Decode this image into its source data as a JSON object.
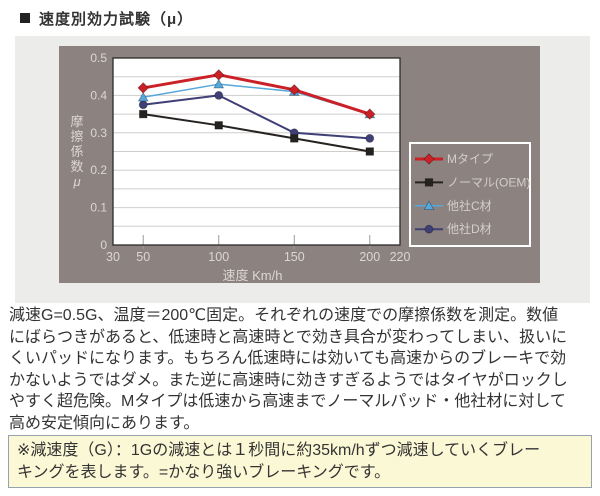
{
  "header": {
    "title": "速度別効力試験（μ）"
  },
  "paragraph": "減速G=0.5G、温度＝200℃固定。それぞれの速度での摩擦係数を測定。数値\nにばらつきがあると、低速時と高速時とで効き具合が変わってしまい、扱いに\nくいパッドになります。もちろん低速時には効いても高速からのブレーキで効\nかないようではダメ。また逆に高速時に効きすぎるようではタイヤがロックし\nやすく超危険。Mタイプは低速から高速までノーマルパッド・他社材に対して\n高め安定傾向にあります。",
  "note": "※減速度（G）：1Gの減速とは１秒間に約35km/hずつ減速していくブレー\nキングを表します。=かなり強いブレーキングです。",
  "colors": {
    "panel_bg": "#8c8380",
    "band_bg": "#ececea",
    "plot_bg": "#ffffff",
    "grid": "#d0cecb",
    "plot_border": "#2b2b2b",
    "tick": "#9a9a9a",
    "tick_text": "#dcd6d0",
    "legend_text": "#d5cec6",
    "legend_border": "#ffffff",
    "note_bg": "#fbf8d6",
    "note_border": "#98a2ae",
    "accent_red": "#cb2026"
  },
  "chart_data": {
    "type": "line",
    "x": [
      50,
      100,
      150,
      200
    ],
    "xticks": [
      30,
      50,
      100,
      150,
      200,
      220
    ],
    "xtick_labels": [
      "30",
      "50",
      "100",
      "150",
      "200",
      "220"
    ],
    "yticks": [
      0,
      0.1,
      0.2,
      0.3,
      0.4,
      0.5
    ],
    "ytick_labels": [
      "0",
      "0.1",
      "0.2",
      "0.3",
      "0.4",
      "0.5"
    ],
    "xlim": [
      30,
      220
    ],
    "ylim": [
      0,
      0.5
    ],
    "grid_step": 0.05,
    "grid": true,
    "xlabel": "速度 Km/h",
    "ylabel": "摩擦係数μ",
    "legend_position": "right",
    "series": [
      {
        "name": "Mタイプ",
        "color": "#cb2026",
        "marker": "diamond",
        "line_width": 3,
        "values": [
          0.42,
          0.455,
          0.415,
          0.35
        ]
      },
      {
        "name": "ノーマル(OEM)",
        "color": "#262220",
        "marker": "square",
        "line_width": 2,
        "values": [
          0.35,
          0.32,
          0.285,
          0.25
        ]
      },
      {
        "name": "他社C材",
        "color": "#56a7dc",
        "marker": "triangle",
        "line_width": 1.5,
        "values": [
          0.395,
          0.43,
          0.41,
          0.35
        ]
      },
      {
        "name": "他社D材",
        "color": "#3f4076",
        "marker": "circle",
        "line_width": 2,
        "values": [
          0.375,
          0.4,
          0.3,
          0.285
        ]
      }
    ]
  }
}
